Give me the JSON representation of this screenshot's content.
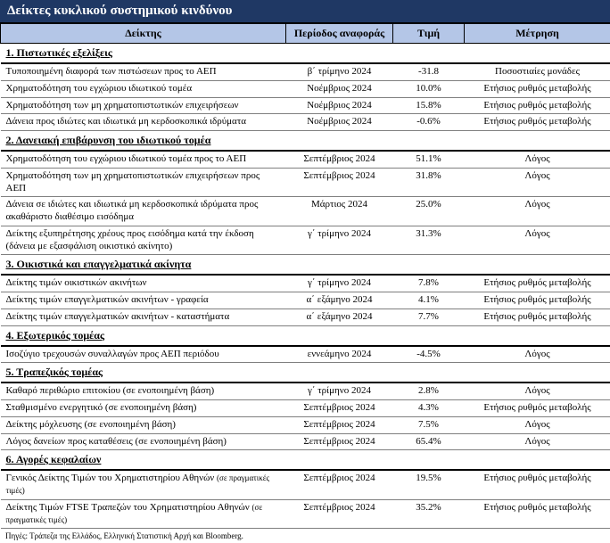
{
  "title": "Δείκτες κυκλικού συστημικού κινδύνου",
  "headers": {
    "indicator": "Δείκτης",
    "period": "Περίοδος αναφοράς",
    "value": "Τιμή",
    "measure": "Μέτρηση"
  },
  "sections": [
    {
      "label": "1. Πιστωτικές εξελίξεις",
      "rows": [
        {
          "ind": "Τυποποιημένη διαφορά των πιστώσεων προς το ΑΕΠ",
          "per": "β΄ τρίμηνο 2024",
          "val": "-31.8",
          "met": "Ποσοστιαίες μονάδες"
        },
        {
          "ind": "Χρηματοδότηση του εγχώριου ιδιωτικού τομέα",
          "per": "Νοέμβριος 2024",
          "val": "10.0%",
          "met": "Ετήσιος ρυθμός μεταβολής"
        },
        {
          "ind": "Χρηματοδότηση των μη χρηματοπιστωτικών επιχειρήσεων",
          "per": "Νοέμβριος 2024",
          "val": "15.8%",
          "met": "Ετήσιος ρυθμός μεταβολής"
        },
        {
          "ind": "Δάνεια προς ιδιώτες και ιδιωτικά μη κερδοσκοπικά ιδρύματα",
          "per": "Νοέμβριος 2024",
          "val": "-0.6%",
          "met": "Ετήσιος ρυθμός μεταβολής"
        }
      ]
    },
    {
      "label": "2. Δανειακή επιβάρυνση του ιδιωτικού τομέα",
      "rows": [
        {
          "ind": "Χρηματοδότηση του εγχώριου ιδιωτικού τομέα προς το ΑΕΠ",
          "per": "Σεπτέμβριος 2024",
          "val": "51.1%",
          "met": "Λόγος"
        },
        {
          "ind": "Χρηματοδότηση των μη χρηματοπιστωτικών επιχειρήσεων προς ΑΕΠ",
          "per": "Σεπτέμβριος 2024",
          "val": "31.8%",
          "met": "Λόγος"
        },
        {
          "ind": "Δάνεια σε ιδιώτες και ιδιωτικά μη κερδοσκοπικά ιδρύματα προς ακαθάριστο διαθέσιμο εισόδημα",
          "per": "Μάρτιος 2024",
          "val": "25.0%",
          "met": "Λόγος"
        },
        {
          "ind": "Δείκτης εξυπηρέτησης χρέους προς εισόδημα κατά την έκδοση (δάνεια με εξασφάλιση οικιστικό ακίνητο)",
          "per": "γ΄ τρίμηνο 2024",
          "val": "31.3%",
          "met": "Λόγος"
        }
      ]
    },
    {
      "label": "3. Οικιστικά και επαγγελματικά ακίνητα",
      "rows": [
        {
          "ind": "Δείκτης τιμών οικιστικών ακινήτων",
          "per": "γ΄ τρίμηνο 2024",
          "val": "7.8%",
          "met": "Ετήσιος ρυθμός μεταβολής"
        },
        {
          "ind": "Δείκτης τιμών επαγγελματικών ακινήτων - γραφεία",
          "per": "α΄ εξάμηνο 2024",
          "val": "4.1%",
          "met": "Ετήσιος ρυθμός μεταβολής"
        },
        {
          "ind": "Δείκτης τιμών επαγγελματικών ακινήτων - καταστήματα",
          "per": "α΄ εξάμηνο 2024",
          "val": "7.7%",
          "met": "Ετήσιος ρυθμός μεταβολής"
        }
      ]
    },
    {
      "label": "4. Εξωτερικός τομέας",
      "rows": [
        {
          "ind": "Ισοζύγιο τρεχουσών συναλλαγών προς ΑΕΠ περιόδου",
          "per": "εννεάμηνο 2024",
          "val": "-4.5%",
          "met": "Λόγος"
        }
      ]
    },
    {
      "label": "5. Τραπεζικός τομέας",
      "rows": [
        {
          "ind": "Καθαρό περιθώριο επιτοκίου (σε ενοποιημένη βάση)",
          "per": "γ΄ τρίμηνο 2024",
          "val": "2.8%",
          "met": "Λόγος"
        },
        {
          "ind": "Σταθμισμένο ενεργητικό (σε ενοποιημένη βάση)",
          "per": "Σεπτέμβριος 2024",
          "val": "4.3%",
          "met": "Ετήσιος ρυθμός μεταβολής"
        },
        {
          "ind": "Δείκτης μόχλευσης (σε ενοποιημένη βάση)",
          "per": "Σεπτέμβριος 2024",
          "val": "7.5%",
          "met": "Λόγος"
        },
        {
          "ind": "Λόγος δανείων προς καταθέσεις (σε ενοποιημένη βάση)",
          "per": "Σεπτέμβριος 2024",
          "val": "65.4%",
          "met": "Λόγος"
        }
      ]
    },
    {
      "label": "6. Αγορές κεφαλαίων",
      "rows": [
        {
          "ind_html": "Γενικός Δείκτης Τιμών του Χρηματιστηρίου Αθηνών <span class=\"small\">(σε πραγματικές τιμές)</span>",
          "per": "Σεπτέμβριος 2024",
          "val": "19.5%",
          "met": "Ετήσιος ρυθμός μεταβολής"
        },
        {
          "ind_html": "Δείκτης Τιμών FTSE Τραπεζών του Χρηματιστηρίου Αθηνών <span class=\"small\">(σε πραγματικές τιμές)</span>",
          "per": "Σεπτέμβριος 2024",
          "val": "35.2%",
          "met": "Ετήσιος ρυθμός μεταβολής"
        }
      ]
    }
  ],
  "footer": "Πηγές: Τράπεζα της Ελλάδος, Ελληνική Στατιστική Αρχή και Bloomberg."
}
